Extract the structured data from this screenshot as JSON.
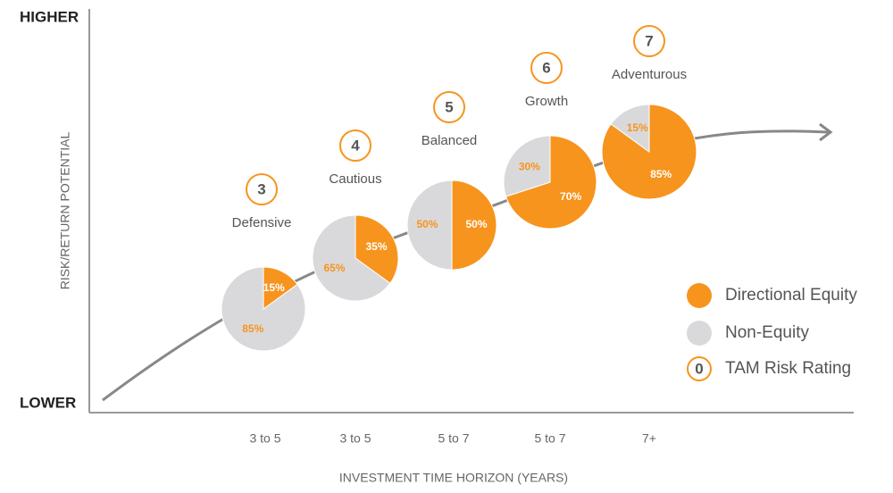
{
  "chart_data": {
    "type": "pie",
    "y_top_label": "HIGHER",
    "y_bottom_label": "LOWER",
    "ylabel": "RISK/RETURN POTENTIAL",
    "xlabel": "INVESTMENT TIME HORIZON (YEARS)",
    "categories": [
      "3 to 5",
      "3 to 5",
      "5 to 7",
      "5 to 7",
      "7+"
    ],
    "names": [
      "Defensive",
      "Cautious",
      "Balanced",
      "Growth",
      "Adventurous"
    ],
    "ratings": [
      "3",
      "4",
      "5",
      "6",
      "7"
    ],
    "series": [
      {
        "name": "Directional Equity",
        "color": "#f7941d",
        "values": [
          15,
          35,
          50,
          70,
          85
        ],
        "value_labels": [
          "15%",
          "35%",
          "50%",
          "70%",
          "85%"
        ]
      },
      {
        "name": "Non-Equity",
        "color": "#d9d9dc",
        "values": [
          85,
          65,
          50,
          30,
          15
        ],
        "value_labels": [
          "85%",
          "65%",
          "50%",
          "30%",
          "15%"
        ]
      }
    ],
    "rating_legend": {
      "symbol": "0",
      "label": "TAM Risk Rating"
    }
  }
}
